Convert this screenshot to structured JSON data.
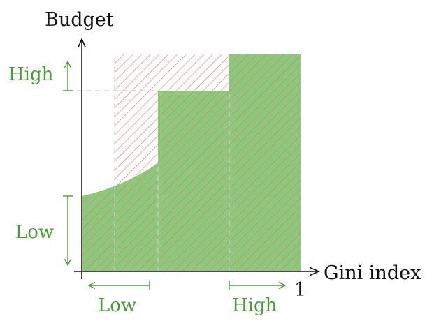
{
  "axes": {
    "y_label": "Budget",
    "x_label": "Gini index",
    "x_end_tick": "1"
  },
  "annotations": {
    "y_high": "High",
    "y_low": "Low",
    "x_low": "Low",
    "x_high": "High"
  },
  "colors": {
    "green_fill": "#8dc97a",
    "green_text": "#4a9a3a",
    "hatch_red": "#e07b84",
    "axis": "#111111",
    "dash": "#d0d0d0"
  }
}
